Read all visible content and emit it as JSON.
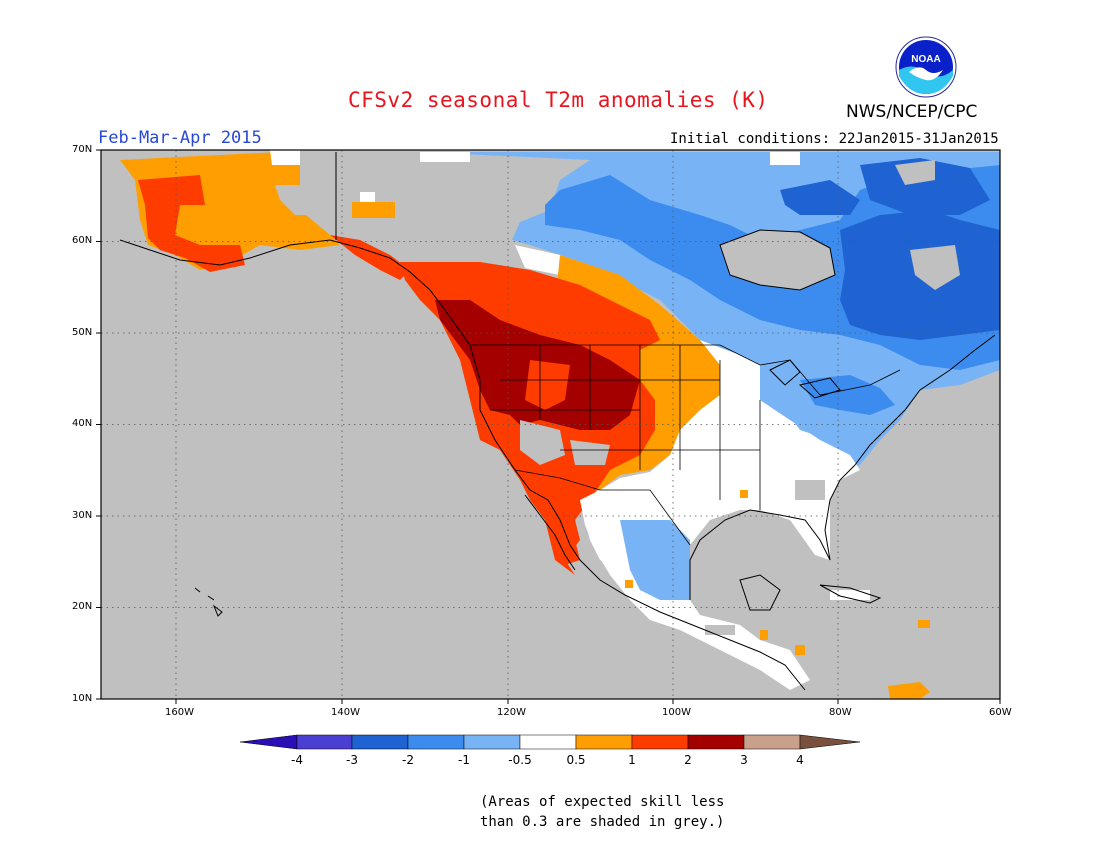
{
  "header": {
    "title": "CFSv2 seasonal T2m anomalies (K)",
    "season": "Feb-Mar-Apr 2015",
    "initial_conditions": "Initial conditions: 22Jan2015-31Jan2015",
    "agency": "NWS/NCEP/CPC",
    "logo_text": "NOAA"
  },
  "map": {
    "latitude_labels": [
      "70N",
      "60N",
      "50N",
      "40N",
      "30N",
      "20N",
      "10N"
    ],
    "longitude_labels": [
      "160W",
      "140W",
      "120W",
      "100W",
      "80W",
      "60W"
    ],
    "background_color": "#c0c0c0",
    "grid": "dotted"
  },
  "colorbar": {
    "labels": [
      "-4",
      "-3",
      "-2",
      "-1",
      "-0.5",
      "0.5",
      "1",
      "2",
      "3",
      "4"
    ],
    "colors": [
      "#2a0fb4",
      "#4b3fd2",
      "#1f63d2",
      "#3c8cf0",
      "#78b4f5",
      "#ffffff",
      "#ff9e00",
      "#ff3c00",
      "#a50000",
      "#c8a08c",
      "#78503c"
    ]
  },
  "note": {
    "line1": "(Areas of expected skill less",
    "line2": "than 0.3 are shaded in grey.)"
  }
}
